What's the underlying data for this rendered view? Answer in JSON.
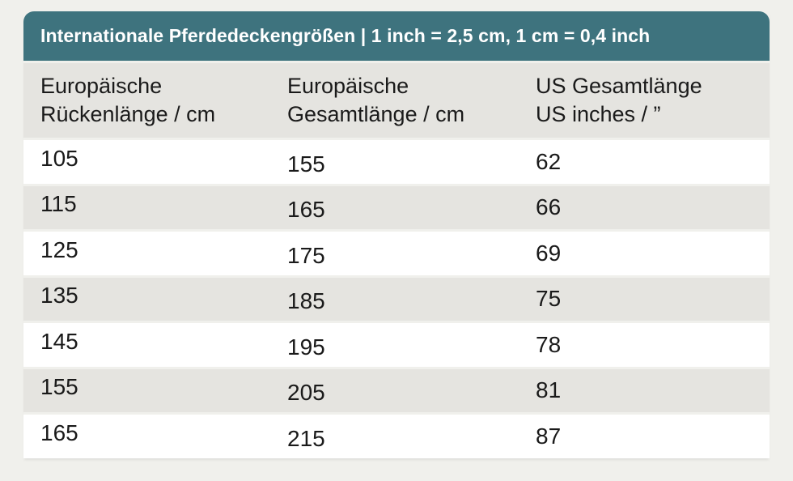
{
  "colors": {
    "page_background": "#f0f0ec",
    "title_bar": "#3e737e",
    "row_gray": "#e5e4e0",
    "text": "#1a1a1a",
    "title_text": "#ffffff"
  },
  "title": "Internationale Pferdedeckengrößen | 1 inch = 2,5 cm, 1 cm = 0,4 inch",
  "columns": [
    {
      "line1": "Europäische",
      "line2": "Rückenlänge / cm"
    },
    {
      "line1": "Europäische",
      "line2": "Gesamtlänge / cm"
    },
    {
      "line1": "US Gesamtlänge",
      "line2": "US inches / ”"
    }
  ],
  "rows": [
    [
      "105",
      "155",
      "62"
    ],
    [
      "115",
      "165",
      "66"
    ],
    [
      "125",
      "175",
      "69"
    ],
    [
      "135",
      "185",
      "75"
    ],
    [
      "145",
      "195",
      "78"
    ],
    [
      "155",
      "205",
      "81"
    ],
    [
      "165",
      "215",
      "87"
    ]
  ],
  "chart_data": {
    "type": "table",
    "title": "Internationale Pferdedeckengrößen | 1 inch = 2,5 cm, 1 cm = 0,4 inch",
    "columns": [
      "Europäische Rückenlänge / cm",
      "Europäische Gesamtlänge / cm",
      "US Gesamtlänge US inches / ”"
    ],
    "rows": [
      [
        105,
        155,
        62
      ],
      [
        115,
        165,
        66
      ],
      [
        125,
        175,
        69
      ],
      [
        135,
        185,
        75
      ],
      [
        145,
        195,
        78
      ],
      [
        155,
        205,
        81
      ],
      [
        165,
        215,
        87
      ]
    ]
  }
}
